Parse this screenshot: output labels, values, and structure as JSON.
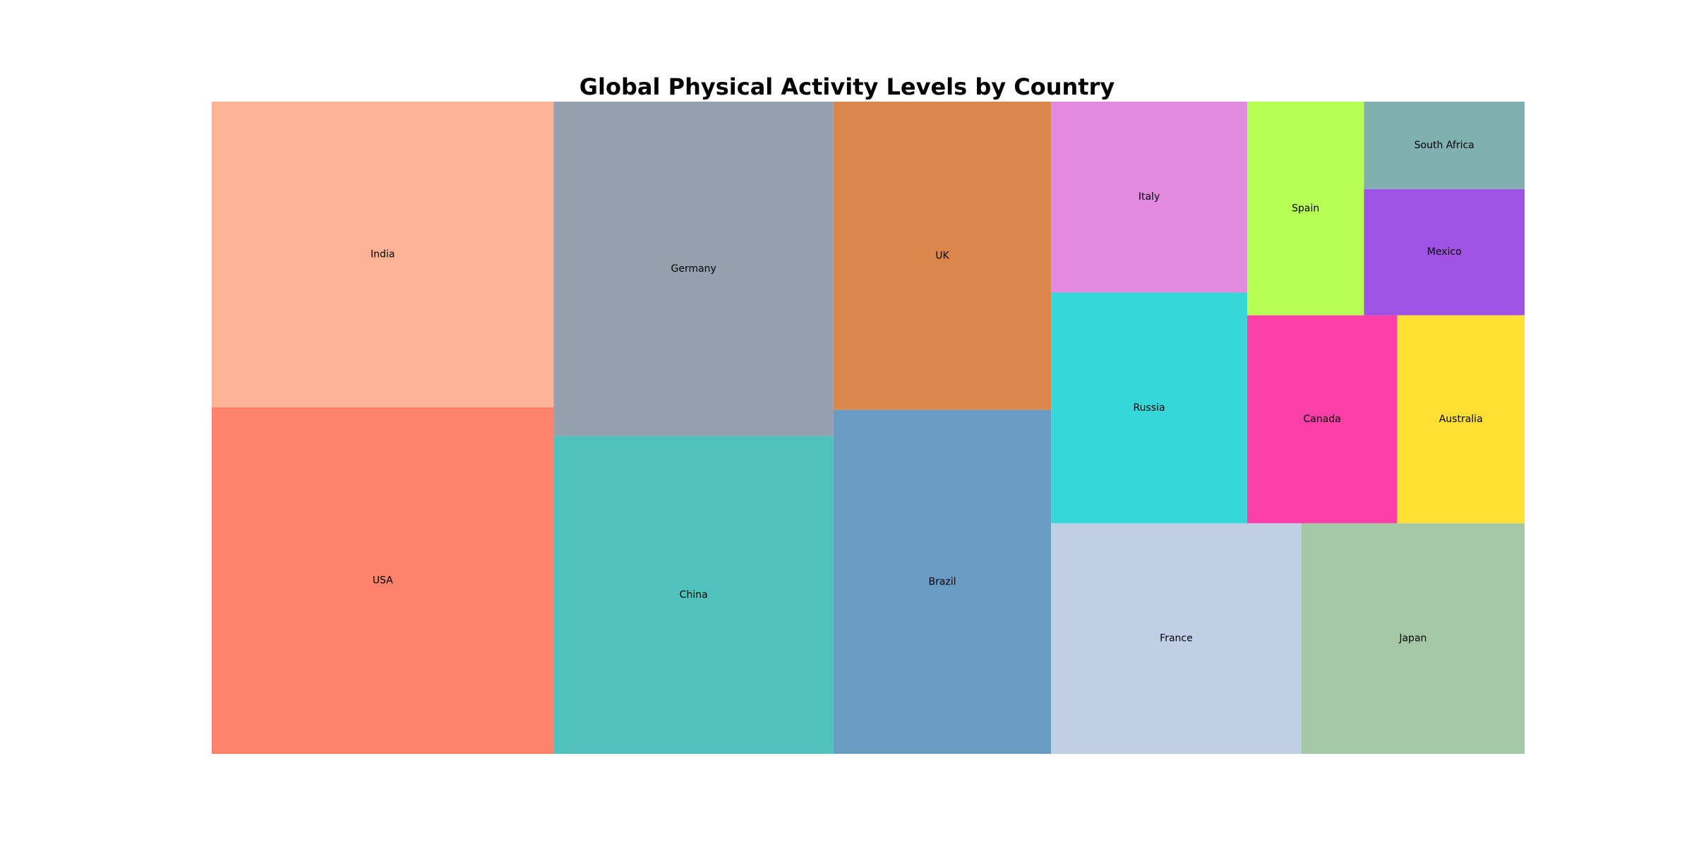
{
  "chart_data": {
    "type": "treemap",
    "title": "Global Physical Activity Levels by Country",
    "items": [
      {
        "label": "USA",
        "value": 76,
        "color": "#ff826c"
      },
      {
        "label": "India",
        "value": 67,
        "color": "#feb296"
      },
      {
        "label": "China",
        "value": 57,
        "color": "#4fc2bc"
      },
      {
        "label": "Germany",
        "value": 60,
        "color": "#93a1ae"
      },
      {
        "label": "Brazil",
        "value": 48,
        "color": "#6a9bc3"
      },
      {
        "label": "UK",
        "value": 43,
        "color": "#db864b"
      },
      {
        "label": "France",
        "value": 37,
        "color": "#bfd0e5"
      },
      {
        "label": "Japan",
        "value": 33,
        "color": "#a5c8a4"
      },
      {
        "label": "Russia",
        "value": 29,
        "color": "#35d7da"
      },
      {
        "label": "Italy",
        "value": 24,
        "color": "#e18ae0"
      },
      {
        "label": "Canada",
        "value": 20,
        "color": "#ff3fa9"
      },
      {
        "label": "Australia",
        "value": 17,
        "color": "#ffdf33"
      },
      {
        "label": "Spain",
        "value": 16,
        "color": "#b7ff55"
      },
      {
        "label": "Mexico",
        "value": 13,
        "color": "#a052e4"
      },
      {
        "label": "South Africa",
        "value": 9,
        "color": "#7fb1b1"
      }
    ]
  }
}
